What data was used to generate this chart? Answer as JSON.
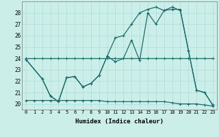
{
  "xlabel": "Humidex (Indice chaleur)",
  "background_color": "#cceee8",
  "grid_color": "#aaddda",
  "line_color": "#1a6b6b",
  "xlim": [
    -0.5,
    23.5
  ],
  "ylim": [
    19.5,
    29.0
  ],
  "xticks": [
    0,
    1,
    2,
    3,
    4,
    5,
    6,
    7,
    8,
    9,
    10,
    11,
    12,
    13,
    14,
    15,
    16,
    17,
    18,
    19,
    20,
    21,
    22,
    23
  ],
  "yticks": [
    20,
    21,
    22,
    23,
    24,
    25,
    26,
    27,
    28
  ],
  "line1_x": [
    0,
    1,
    2,
    3,
    4,
    5,
    6,
    7,
    8,
    9,
    10,
    11,
    12,
    13,
    14,
    15,
    16,
    17,
    18,
    19,
    20,
    21,
    22,
    23
  ],
  "line1_y": [
    24,
    24,
    24,
    24,
    24,
    24,
    24,
    24,
    24,
    24,
    24,
    24,
    24,
    24,
    24,
    24,
    24,
    24,
    24,
    24,
    24,
    24,
    24,
    24
  ],
  "line2_x": [
    0,
    1,
    2,
    3,
    4,
    5,
    6,
    7,
    8,
    9,
    10,
    11,
    12,
    13,
    14,
    15,
    16,
    17,
    18,
    19,
    20,
    21,
    22,
    23
  ],
  "line2_y": [
    20.3,
    20.3,
    20.3,
    20.3,
    20.3,
    20.3,
    20.3,
    20.3,
    20.3,
    20.3,
    20.2,
    20.2,
    20.2,
    20.2,
    20.2,
    20.2,
    20.2,
    20.2,
    20.1,
    20.0,
    20.0,
    20.0,
    19.9,
    19.8
  ],
  "line3_x": [
    0,
    2,
    3,
    4,
    5,
    6,
    7,
    8,
    9,
    10,
    11,
    12,
    13,
    14,
    15,
    16,
    17,
    18,
    19,
    20,
    21,
    22,
    23
  ],
  "line3_y": [
    23.9,
    22.2,
    20.7,
    20.2,
    22.3,
    22.4,
    21.5,
    21.8,
    22.5,
    24.2,
    23.7,
    24.0,
    25.6,
    23.8,
    28.0,
    27.0,
    28.2,
    28.5,
    28.2,
    24.7,
    21.2,
    21.0,
    19.9
  ],
  "line4_x": [
    0,
    2,
    3,
    4,
    5,
    6,
    7,
    8,
    9,
    10,
    11,
    12,
    13,
    14,
    15,
    16,
    17,
    18,
    19,
    20,
    21,
    22,
    23
  ],
  "line4_y": [
    23.9,
    22.2,
    20.7,
    20.2,
    22.3,
    22.4,
    21.5,
    21.8,
    22.5,
    24.2,
    25.8,
    26.0,
    27.0,
    28.0,
    28.3,
    28.5,
    28.2,
    28.3,
    28.3,
    24.7,
    21.2,
    21.0,
    19.9
  ]
}
